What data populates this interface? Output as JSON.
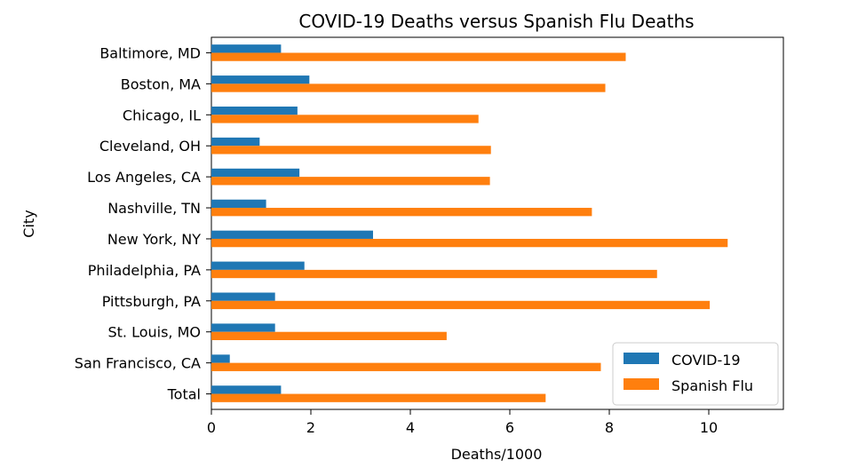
{
  "chart_data": {
    "type": "bar",
    "orientation": "horizontal",
    "title": "COVID-19 Deaths versus Spanish Flu Deaths",
    "xlabel": "Deaths/1000",
    "ylabel": "City",
    "xlim": [
      0,
      11.5
    ],
    "xticks": [
      0,
      2,
      4,
      6,
      8,
      10
    ],
    "categories": [
      "Baltimore, MD",
      "Boston, MA",
      "Chicago, IL",
      "Cleveland, OH",
      "Los Angeles, CA",
      "Nashville, TN",
      "New York, NY",
      "Philadelphia, PA",
      "Pittsburgh, PA",
      "St. Louis, MO",
      "San Francisco, CA",
      "Total"
    ],
    "series": [
      {
        "name": "COVID-19",
        "color": "#1f77b4",
        "values": [
          1.4,
          1.97,
          1.73,
          0.97,
          1.77,
          1.1,
          3.25,
          1.87,
          1.28,
          1.28,
          0.37,
          1.4
        ]
      },
      {
        "name": "Spanish Flu",
        "color": "#ff7f0e",
        "values": [
          8.33,
          7.92,
          5.37,
          5.62,
          5.6,
          7.65,
          10.38,
          8.96,
          10.02,
          4.73,
          7.83,
          6.72
        ]
      }
    ],
    "grid": false,
    "legend_position": "bottom-right"
  }
}
